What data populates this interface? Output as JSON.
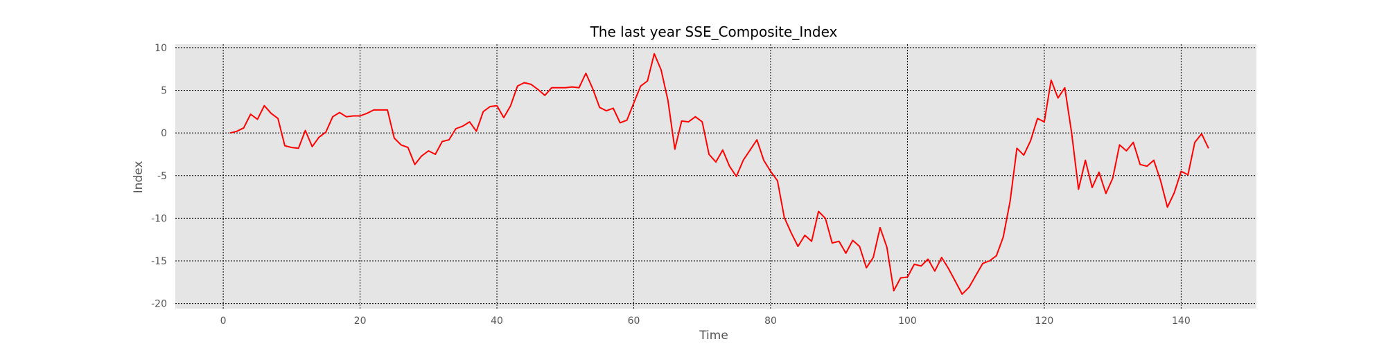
{
  "chart_data": {
    "type": "line",
    "title": "The last year SSE_Composite_Index",
    "xlabel": "Time",
    "ylabel": "Index",
    "xlim": [
      -7,
      151
    ],
    "ylim": [
      -20.6,
      10.4
    ],
    "xticks": [
      0,
      20,
      40,
      60,
      80,
      100,
      120,
      140
    ],
    "yticks": [
      10,
      5,
      0,
      -5,
      -10,
      -15,
      -20
    ],
    "grid": true,
    "legend": "none",
    "colors": {
      "background": "#e5e5e5",
      "grid": "#000000",
      "line": "#ff0000"
    },
    "series": [
      {
        "x": [
          1,
          2,
          3,
          4,
          5,
          6,
          7,
          8,
          9,
          10,
          11,
          12,
          13,
          14,
          15,
          16,
          17,
          18,
          19,
          20,
          21,
          22,
          23,
          24,
          25,
          26,
          27,
          28,
          29,
          30,
          31,
          32,
          33,
          34,
          35,
          36,
          37,
          38,
          39,
          40,
          41,
          42,
          43,
          44,
          45,
          46,
          47,
          48,
          49,
          50,
          51,
          52,
          53,
          54,
          55,
          56,
          57,
          58,
          59,
          60,
          61,
          62,
          63,
          64,
          65,
          66,
          67,
          68,
          69,
          70,
          71,
          72,
          73,
          74,
          75,
          76,
          77,
          78,
          79,
          80,
          81,
          82,
          83,
          84,
          85,
          86,
          87,
          88,
          89,
          90,
          91,
          92,
          93,
          94,
          95,
          96,
          97,
          98,
          99,
          100,
          101,
          102,
          103,
          104,
          105,
          106,
          107,
          108,
          109,
          110,
          111,
          112,
          113,
          114,
          115,
          116,
          117,
          118,
          119,
          120,
          121,
          122,
          123,
          124,
          125,
          126,
          127,
          128,
          129,
          130,
          131,
          132,
          133,
          134,
          135,
          136,
          137,
          138,
          139,
          140,
          141,
          142,
          143,
          144
        ],
        "values": [
          0.0,
          0.2,
          0.6,
          2.2,
          1.6,
          3.2,
          2.3,
          1.7,
          -1.5,
          -1.7,
          -1.8,
          0.3,
          -1.6,
          -0.5,
          0.1,
          1.9,
          2.4,
          1.9,
          2.0,
          2.0,
          2.3,
          2.7,
          2.7,
          2.7,
          -0.6,
          -1.4,
          -1.7,
          -3.7,
          -2.7,
          -2.1,
          -2.5,
          -1.0,
          -0.8,
          0.5,
          0.8,
          1.3,
          0.2,
          2.5,
          3.1,
          3.2,
          1.8,
          3.2,
          5.5,
          5.9,
          5.7,
          5.1,
          4.4,
          5.3,
          5.3,
          5.3,
          5.4,
          5.3,
          7.0,
          5.2,
          3.0,
          2.6,
          2.9,
          1.2,
          1.5,
          3.5,
          5.5,
          6.1,
          9.3,
          7.4,
          3.8,
          -1.9,
          1.4,
          1.3,
          1.9,
          1.3,
          -2.5,
          -3.4,
          -2.0,
          -3.9,
          -5.1,
          -3.2,
          -2.0,
          -0.8,
          -3.2,
          -4.5,
          -5.6,
          -9.9,
          -11.7,
          -13.3,
          -12.0,
          -12.7,
          -9.2,
          -10.0,
          -12.9,
          -12.7,
          -14.1,
          -12.6,
          -13.3,
          -15.8,
          -14.6,
          -11.1,
          -13.4,
          -18.5,
          -17.0,
          -16.9,
          -15.4,
          -15.6,
          -14.8,
          -16.2,
          -14.6,
          -15.9,
          -17.4,
          -18.9,
          -18.1,
          -16.7,
          -15.3,
          -15.0,
          -14.4,
          -12.2,
          -8.0,
          -1.8,
          -2.6,
          -0.9,
          1.7,
          1.3,
          6.2,
          4.1,
          5.3,
          0.0,
          -6.6,
          -3.2,
          -6.4,
          -4.6,
          -7.1,
          -5.3,
          -1.4,
          -2.1,
          -1.1,
          -3.7,
          -3.9,
          -3.2,
          -5.6,
          -8.7,
          -7.0,
          -4.5,
          -4.9,
          -1.1,
          -0.1,
          -1.8
        ]
      }
    ]
  }
}
